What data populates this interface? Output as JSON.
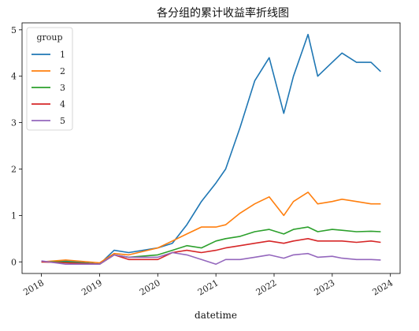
{
  "chart_data": {
    "type": "line",
    "title": "各分组的累计收益率折线图",
    "xlabel": "datetime",
    "ylabel": "",
    "x_ticks": [
      "2018",
      "2019",
      "2020",
      "2021",
      "2022",
      "2023",
      "2024"
    ],
    "y_ticks": [
      "0",
      "1",
      "2",
      "3",
      "4",
      "5"
    ],
    "ylim": [
      -0.25,
      5.15
    ],
    "xlim": [
      "2017-09",
      "2024-03"
    ],
    "grid": false,
    "legend": {
      "title": "group",
      "position": "top-left"
    },
    "x": [
      "2018-01",
      "2018-06",
      "2019-01",
      "2019-04",
      "2019-07",
      "2020-01",
      "2020-04",
      "2020-07",
      "2020-10",
      "2021-01",
      "2021-03",
      "2021-06",
      "2021-09",
      "2021-12",
      "2022-03",
      "2022-05",
      "2022-08",
      "2022-10",
      "2023-01",
      "2023-03",
      "2023-06",
      "2023-09",
      "2023-11"
    ],
    "series": [
      {
        "name": "1",
        "color": "#1f77b4",
        "values": [
          0.0,
          0.02,
          -0.05,
          0.25,
          0.2,
          0.3,
          0.4,
          0.8,
          1.3,
          1.7,
          2.0,
          2.9,
          3.9,
          4.4,
          3.2,
          4.0,
          4.9,
          4.0,
          4.3,
          4.5,
          4.3,
          4.3,
          4.1
        ]
      },
      {
        "name": "2",
        "color": "#ff7f0e",
        "values": [
          0.0,
          0.04,
          -0.02,
          0.18,
          0.15,
          0.3,
          0.45,
          0.6,
          0.75,
          0.75,
          0.8,
          1.05,
          1.25,
          1.4,
          1.0,
          1.3,
          1.5,
          1.25,
          1.3,
          1.35,
          1.3,
          1.25,
          1.25
        ]
      },
      {
        "name": "3",
        "color": "#2ca02c",
        "values": [
          0.0,
          0.0,
          -0.05,
          0.15,
          0.1,
          0.15,
          0.25,
          0.35,
          0.3,
          0.45,
          0.5,
          0.55,
          0.65,
          0.7,
          0.6,
          0.7,
          0.75,
          0.65,
          0.7,
          0.68,
          0.65,
          0.66,
          0.65
        ]
      },
      {
        "name": "4",
        "color": "#d62728",
        "values": [
          0.0,
          -0.02,
          -0.05,
          0.15,
          0.05,
          0.05,
          0.2,
          0.25,
          0.2,
          0.25,
          0.3,
          0.35,
          0.4,
          0.45,
          0.4,
          0.45,
          0.5,
          0.45,
          0.45,
          0.45,
          0.42,
          0.45,
          0.42
        ]
      },
      {
        "name": "5",
        "color": "#9467bd",
        "values": [
          0.02,
          -0.05,
          -0.05,
          0.15,
          0.1,
          0.1,
          0.2,
          0.15,
          0.05,
          -0.05,
          0.05,
          0.05,
          0.1,
          0.15,
          0.08,
          0.15,
          0.18,
          0.1,
          0.12,
          0.08,
          0.05,
          0.05,
          0.04
        ]
      }
    ]
  }
}
